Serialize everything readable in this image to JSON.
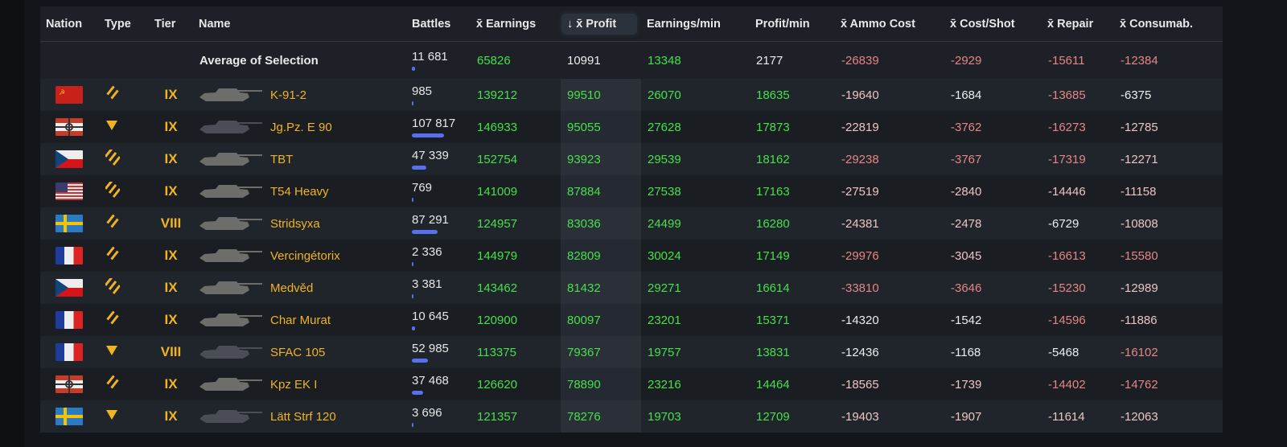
{
  "colors": {
    "green": "#45e04a",
    "white": "#ececec",
    "pale": "#ebc3c3",
    "red": "#e58585",
    "tier": "#f0b323",
    "bar": "#5a6ef0"
  },
  "header": {
    "nation": "Nation",
    "type": "Type",
    "tier": "Tier",
    "name": "Name",
    "battles": "Battles",
    "earnings": "x̄ Earnings",
    "profit": "↓ x̄ Profit",
    "earnings_min": "Earnings/min",
    "profit_min": "Profit/min",
    "ammo": "x̄ Ammo Cost",
    "cost_shot": "x̄ Cost/Shot",
    "repair": "x̄ Repair",
    "consum": "x̄ Consumab."
  },
  "average": {
    "label": "Average of Selection",
    "battles": "11 681",
    "battles_n": 11681,
    "cells": [
      {
        "v": "65826",
        "c": "green"
      },
      {
        "v": "10991",
        "c": "white"
      },
      {
        "v": "13348",
        "c": "green"
      },
      {
        "v": "2177",
        "c": "white"
      },
      {
        "v": "-26839",
        "c": "red"
      },
      {
        "v": "-2929",
        "c": "red"
      },
      {
        "v": "-15611",
        "c": "red"
      },
      {
        "v": "-12384",
        "c": "red"
      }
    ]
  },
  "rows": [
    {
      "nation": "ussr",
      "type": "medium",
      "tier": "IX",
      "name": "K-91-2",
      "battles": "985",
      "battles_n": 985,
      "cells": [
        {
          "v": "139212",
          "c": "green"
        },
        {
          "v": "99510",
          "c": "green"
        },
        {
          "v": "26070",
          "c": "green"
        },
        {
          "v": "18635",
          "c": "green"
        },
        {
          "v": "-19640",
          "c": "pale"
        },
        {
          "v": "-1684",
          "c": "white"
        },
        {
          "v": "-13685",
          "c": "red"
        },
        {
          "v": "-6375",
          "c": "white"
        }
      ]
    },
    {
      "nation": "germany",
      "type": "td",
      "tier": "IX",
      "name": "Jg.Pz. E 90",
      "battles": "107 817",
      "battles_n": 107817,
      "cells": [
        {
          "v": "146933",
          "c": "green"
        },
        {
          "v": "95055",
          "c": "green"
        },
        {
          "v": "27628",
          "c": "green"
        },
        {
          "v": "17873",
          "c": "green"
        },
        {
          "v": "-22819",
          "c": "pale"
        },
        {
          "v": "-3762",
          "c": "red"
        },
        {
          "v": "-16273",
          "c": "red"
        },
        {
          "v": "-12785",
          "c": "pale"
        }
      ]
    },
    {
      "nation": "czech",
      "type": "heavy",
      "tier": "IX",
      "name": "TBT",
      "battles": "47 339",
      "battles_n": 47339,
      "cells": [
        {
          "v": "152754",
          "c": "green"
        },
        {
          "v": "93923",
          "c": "green"
        },
        {
          "v": "29539",
          "c": "green"
        },
        {
          "v": "18162",
          "c": "green"
        },
        {
          "v": "-29238",
          "c": "red"
        },
        {
          "v": "-3767",
          "c": "red"
        },
        {
          "v": "-17319",
          "c": "red"
        },
        {
          "v": "-12271",
          "c": "pale"
        }
      ]
    },
    {
      "nation": "usa",
      "type": "heavy",
      "tier": "IX",
      "name": "T54 Heavy",
      "battles": "769",
      "battles_n": 769,
      "cells": [
        {
          "v": "141009",
          "c": "green"
        },
        {
          "v": "87884",
          "c": "green"
        },
        {
          "v": "27538",
          "c": "green"
        },
        {
          "v": "17163",
          "c": "green"
        },
        {
          "v": "-27519",
          "c": "pale"
        },
        {
          "v": "-2840",
          "c": "pale"
        },
        {
          "v": "-14446",
          "c": "pale"
        },
        {
          "v": "-11158",
          "c": "pale"
        }
      ]
    },
    {
      "nation": "sweden",
      "type": "medium",
      "tier": "VIII",
      "name": "Stridsyxa",
      "battles": "87 291",
      "battles_n": 87291,
      "cells": [
        {
          "v": "124957",
          "c": "green"
        },
        {
          "v": "83036",
          "c": "green"
        },
        {
          "v": "24499",
          "c": "green"
        },
        {
          "v": "16280",
          "c": "green"
        },
        {
          "v": "-24381",
          "c": "pale"
        },
        {
          "v": "-2478",
          "c": "pale"
        },
        {
          "v": "-6729",
          "c": "white"
        },
        {
          "v": "-10808",
          "c": "pale"
        }
      ]
    },
    {
      "nation": "france",
      "type": "medium",
      "tier": "IX",
      "name": "Vercingétorix",
      "battles": "2 336",
      "battles_n": 2336,
      "cells": [
        {
          "v": "144979",
          "c": "green"
        },
        {
          "v": "82809",
          "c": "green"
        },
        {
          "v": "30024",
          "c": "green"
        },
        {
          "v": "17149",
          "c": "green"
        },
        {
          "v": "-29976",
          "c": "red"
        },
        {
          "v": "-3045",
          "c": "pale"
        },
        {
          "v": "-16613",
          "c": "red"
        },
        {
          "v": "-15580",
          "c": "red"
        }
      ]
    },
    {
      "nation": "czech",
      "type": "heavy",
      "tier": "IX",
      "name": "Medvěd",
      "battles": "3 381",
      "battles_n": 3381,
      "cells": [
        {
          "v": "143462",
          "c": "green"
        },
        {
          "v": "81432",
          "c": "green"
        },
        {
          "v": "29271",
          "c": "green"
        },
        {
          "v": "16614",
          "c": "green"
        },
        {
          "v": "-33810",
          "c": "red"
        },
        {
          "v": "-3646",
          "c": "red"
        },
        {
          "v": "-15230",
          "c": "red"
        },
        {
          "v": "-12989",
          "c": "pale"
        }
      ]
    },
    {
      "nation": "france",
      "type": "medium",
      "tier": "IX",
      "name": "Char Murat",
      "battles": "10 645",
      "battles_n": 10645,
      "cells": [
        {
          "v": "120900",
          "c": "green"
        },
        {
          "v": "80097",
          "c": "green"
        },
        {
          "v": "23201",
          "c": "green"
        },
        {
          "v": "15371",
          "c": "green"
        },
        {
          "v": "-14320",
          "c": "white"
        },
        {
          "v": "-1542",
          "c": "white"
        },
        {
          "v": "-14596",
          "c": "red"
        },
        {
          "v": "-11886",
          "c": "pale"
        }
      ]
    },
    {
      "nation": "france",
      "type": "td",
      "tier": "VIII",
      "name": "SFAC 105",
      "battles": "52 985",
      "battles_n": 52985,
      "cells": [
        {
          "v": "113375",
          "c": "green"
        },
        {
          "v": "79367",
          "c": "green"
        },
        {
          "v": "19757",
          "c": "green"
        },
        {
          "v": "13831",
          "c": "green"
        },
        {
          "v": "-12436",
          "c": "white"
        },
        {
          "v": "-1168",
          "c": "white"
        },
        {
          "v": "-5468",
          "c": "white"
        },
        {
          "v": "-16102",
          "c": "red"
        }
      ]
    },
    {
      "nation": "germany",
      "type": "medium",
      "tier": "IX",
      "name": "Kpz EK I",
      "battles": "37 468",
      "battles_n": 37468,
      "cells": [
        {
          "v": "126620",
          "c": "green"
        },
        {
          "v": "78890",
          "c": "green"
        },
        {
          "v": "23216",
          "c": "green"
        },
        {
          "v": "14464",
          "c": "green"
        },
        {
          "v": "-18565",
          "c": "pale"
        },
        {
          "v": "-1739",
          "c": "pale"
        },
        {
          "v": "-14402",
          "c": "red"
        },
        {
          "v": "-14762",
          "c": "red"
        }
      ]
    },
    {
      "nation": "sweden",
      "type": "td",
      "tier": "IX",
      "name": "Lätt Strf 120",
      "battles": "3 696",
      "battles_n": 3696,
      "cells": [
        {
          "v": "121357",
          "c": "green"
        },
        {
          "v": "78276",
          "c": "green"
        },
        {
          "v": "19703",
          "c": "green"
        },
        {
          "v": "12709",
          "c": "green"
        },
        {
          "v": "-19403",
          "c": "pale"
        },
        {
          "v": "-1907",
          "c": "pale"
        },
        {
          "v": "-11614",
          "c": "pale"
        },
        {
          "v": "-12063",
          "c": "pale"
        }
      ]
    }
  ]
}
